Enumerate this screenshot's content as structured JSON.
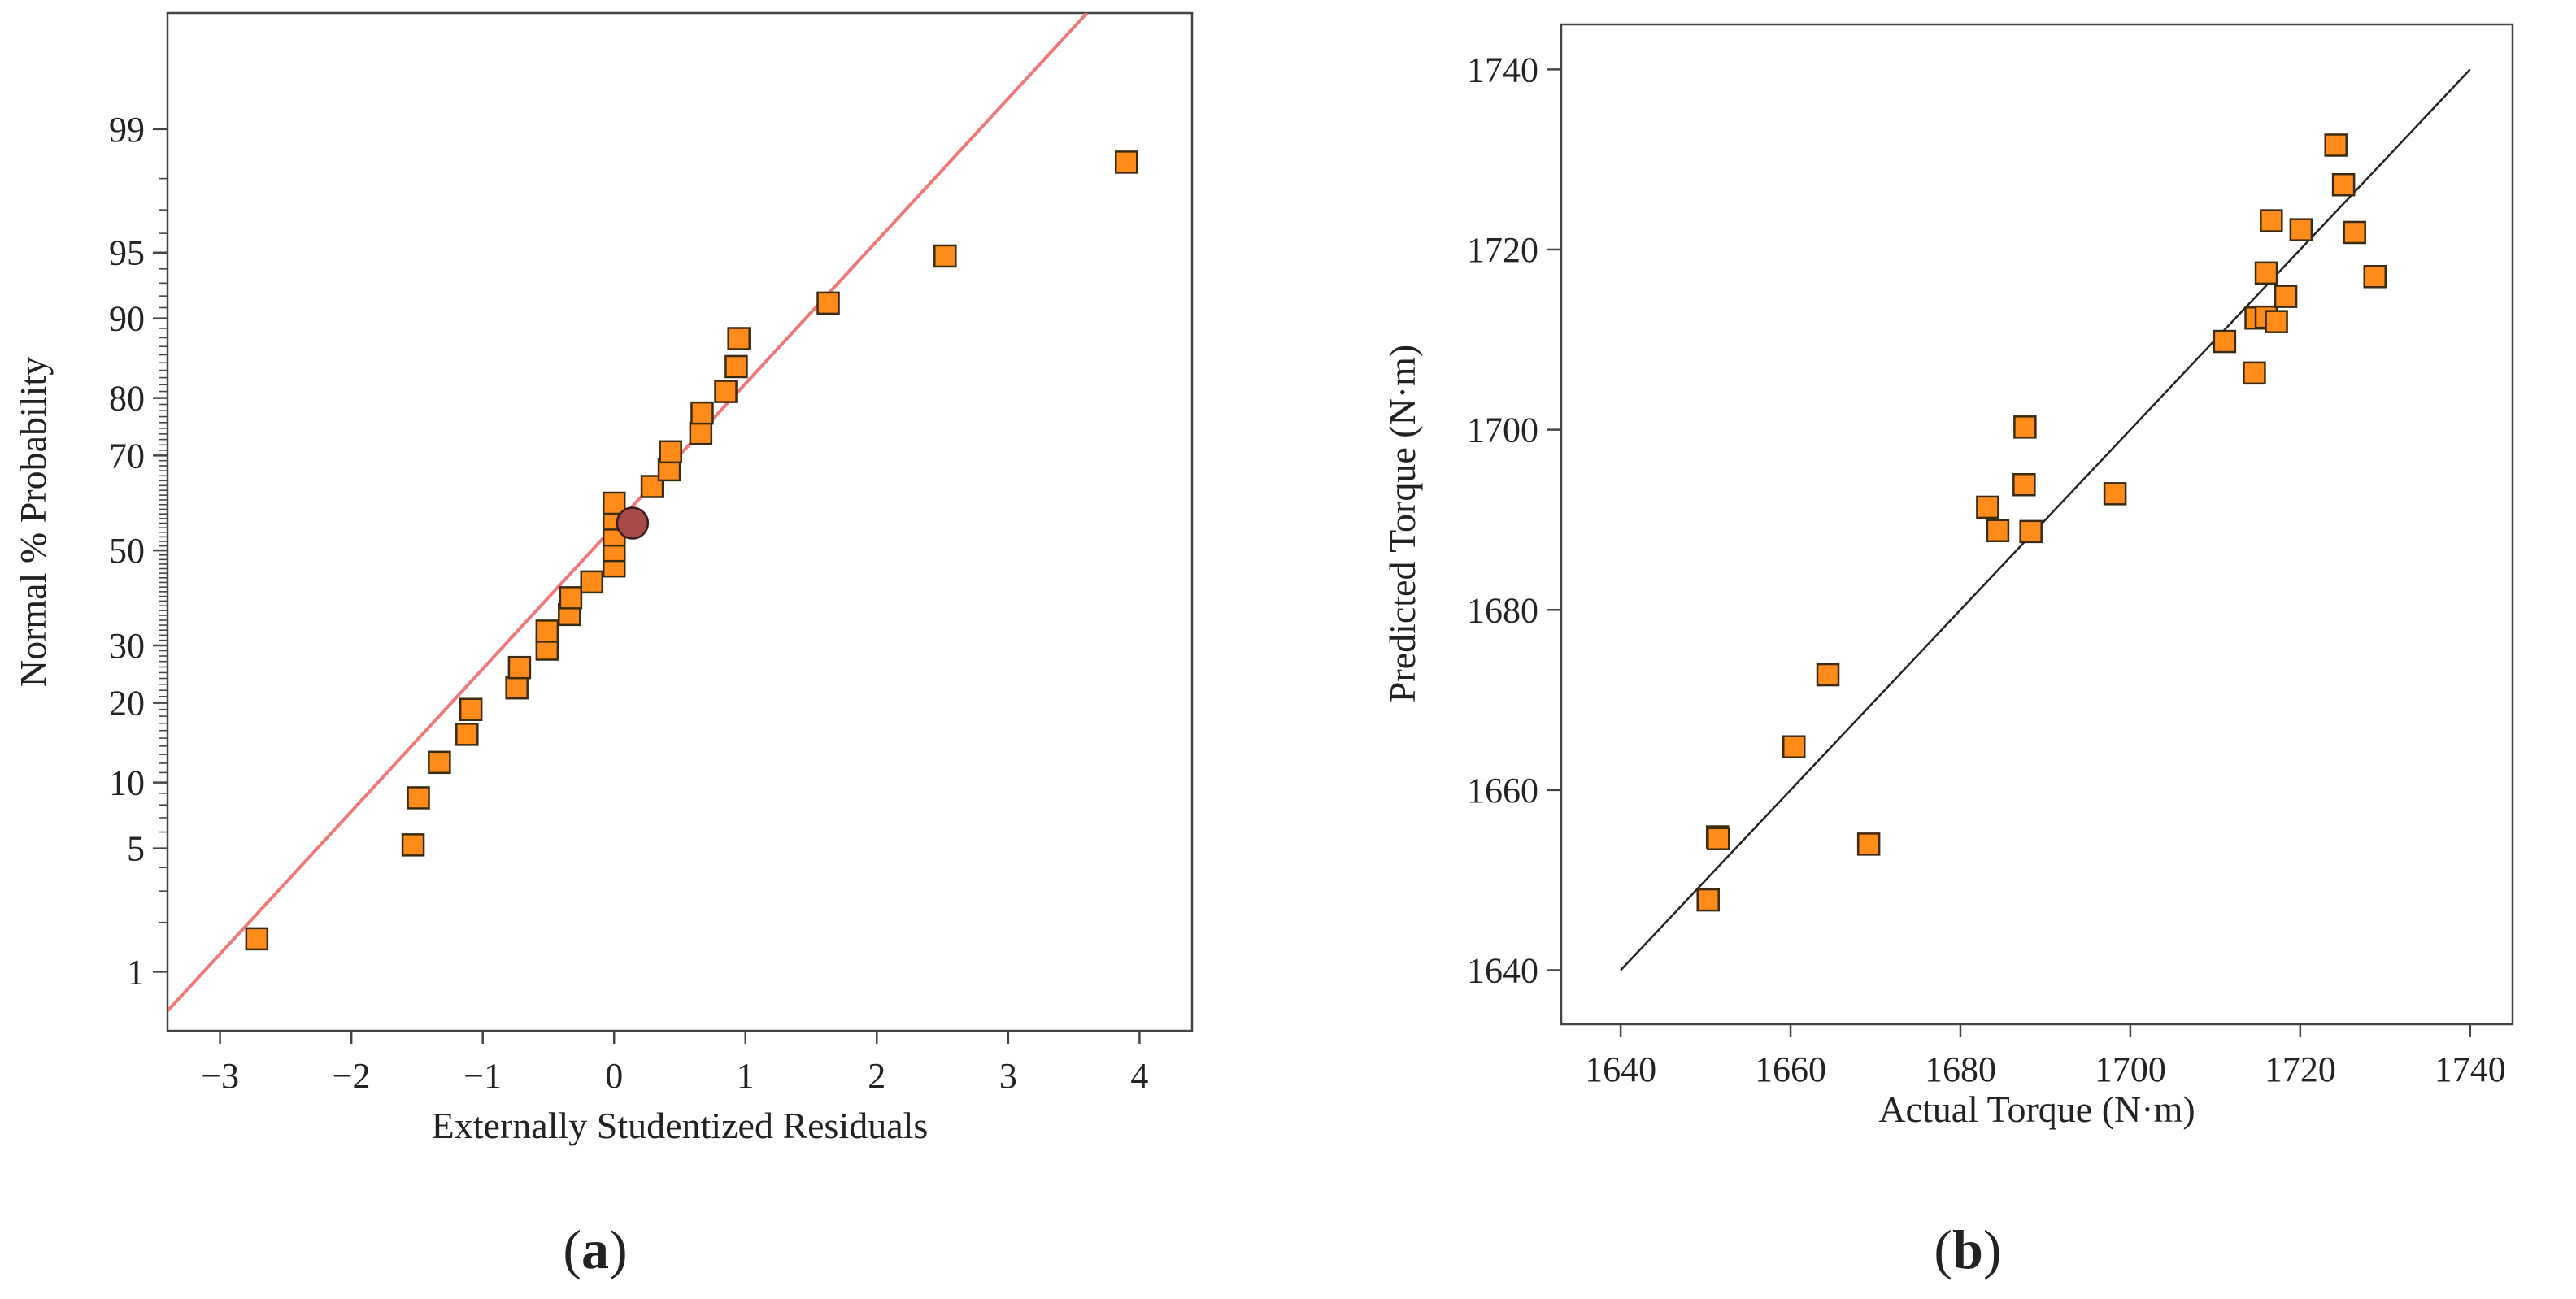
{
  "colors": {
    "marker_fill": "#FF8C1A",
    "marker_stroke": "#3a2a10",
    "highlight_fill": "#A84A4A",
    "fit_line_a": "#F07878",
    "fit_line_b": "#222222",
    "axis": "#444444"
  },
  "chart_data": [
    {
      "id": "a",
      "type": "scatter",
      "subtype": "normal-probability-plot",
      "panel_label": "a",
      "xlabel": "Externally Studentized Residuals",
      "ylabel": "Normal % Probability",
      "xlim": [
        -3.4,
        4.4
      ],
      "x_ticks": [
        -3,
        -2,
        -1,
        0,
        1,
        2,
        3,
        4
      ],
      "x_tick_labels": [
        "−3",
        "−2",
        "−1",
        "0",
        "1",
        "2",
        "3",
        "4"
      ],
      "ylim_percent": [
        0.4,
        99.85
      ],
      "y_scale": "normal-probability",
      "y_ticks": [
        1,
        5,
        10,
        20,
        30,
        50,
        70,
        80,
        90,
        95,
        99
      ],
      "y_tick_labels": [
        "1",
        "5",
        "10",
        "20",
        "30",
        "50",
        "70",
        "80",
        "90",
        "95",
        "99"
      ],
      "reference_line": {
        "points": [
          [
            -3.4,
            0.55
          ],
          [
            3.6,
            99.85
          ]
        ]
      },
      "points": [
        {
          "x": -2.72,
          "y": 1.6
        },
        {
          "x": -1.53,
          "y": 5.2
        },
        {
          "x": -1.49,
          "y": 8.6
        },
        {
          "x": -1.33,
          "y": 12.1
        },
        {
          "x": -1.12,
          "y": 15.5
        },
        {
          "x": -1.09,
          "y": 19.0
        },
        {
          "x": -0.74,
          "y": 22.4
        },
        {
          "x": -0.72,
          "y": 25.9
        },
        {
          "x": -0.51,
          "y": 29.3
        },
        {
          "x": -0.51,
          "y": 32.8
        },
        {
          "x": -0.34,
          "y": 36.2
        },
        {
          "x": -0.33,
          "y": 39.7
        },
        {
          "x": -0.17,
          "y": 43.1
        },
        {
          "x": 0.0,
          "y": 46.6
        },
        {
          "x": 0.0,
          "y": 50.0
        },
        {
          "x": 0.0,
          "y": 53.4
        },
        {
          "x": 0.0,
          "y": 56.9
        },
        {
          "x": 0.0,
          "y": 60.3
        },
        {
          "x": 0.29,
          "y": 63.8
        },
        {
          "x": 0.42,
          "y": 67.2
        },
        {
          "x": 0.43,
          "y": 70.7
        },
        {
          "x": 0.66,
          "y": 74.1
        },
        {
          "x": 0.67,
          "y": 77.6
        },
        {
          "x": 0.85,
          "y": 81.0
        },
        {
          "x": 0.93,
          "y": 84.5
        },
        {
          "x": 0.95,
          "y": 87.9
        },
        {
          "x": 1.63,
          "y": 91.4
        },
        {
          "x": 2.52,
          "y": 94.8
        },
        {
          "x": 3.9,
          "y": 98.4
        }
      ],
      "highlight_point": {
        "x": 0.14,
        "y": 56.0
      }
    },
    {
      "id": "b",
      "type": "scatter",
      "subtype": "predicted-vs-actual",
      "panel_label": "b",
      "xlabel": "Actual Torque (N·m)",
      "ylabel": "Predicted Torque (N·m)",
      "xlim": [
        1633,
        1745
      ],
      "ylim": [
        1634,
        1745
      ],
      "x_ticks": [
        1640,
        1660,
        1680,
        1700,
        1720,
        1740
      ],
      "y_ticks": [
        1640,
        1660,
        1680,
        1700,
        1720,
        1740
      ],
      "reference_line": {
        "points": [
          [
            1640,
            1640
          ],
          [
            1740,
            1740
          ]
        ]
      },
      "points": [
        {
          "x": 1650.3,
          "y": 1647.8
        },
        {
          "x": 1651.4,
          "y": 1654.8
        },
        {
          "x": 1651.5,
          "y": 1654.6
        },
        {
          "x": 1660.4,
          "y": 1664.8
        },
        {
          "x": 1664.4,
          "y": 1672.8
        },
        {
          "x": 1669.2,
          "y": 1654.0
        },
        {
          "x": 1683.2,
          "y": 1691.4
        },
        {
          "x": 1684.4,
          "y": 1688.8
        },
        {
          "x": 1687.5,
          "y": 1693.9
        },
        {
          "x": 1687.6,
          "y": 1700.3
        },
        {
          "x": 1688.3,
          "y": 1688.7
        },
        {
          "x": 1698.2,
          "y": 1692.9
        },
        {
          "x": 1711.1,
          "y": 1709.8
        },
        {
          "x": 1714.6,
          "y": 1706.3
        },
        {
          "x": 1714.8,
          "y": 1712.4
        },
        {
          "x": 1716.0,
          "y": 1712.5
        },
        {
          "x": 1716.0,
          "y": 1717.4
        },
        {
          "x": 1716.6,
          "y": 1723.2
        },
        {
          "x": 1717.2,
          "y": 1712.0
        },
        {
          "x": 1718.3,
          "y": 1714.8
        },
        {
          "x": 1720.1,
          "y": 1722.2
        },
        {
          "x": 1724.2,
          "y": 1731.6
        },
        {
          "x": 1725.1,
          "y": 1727.2
        },
        {
          "x": 1726.4,
          "y": 1721.9
        },
        {
          "x": 1728.8,
          "y": 1717.0
        }
      ]
    }
  ]
}
